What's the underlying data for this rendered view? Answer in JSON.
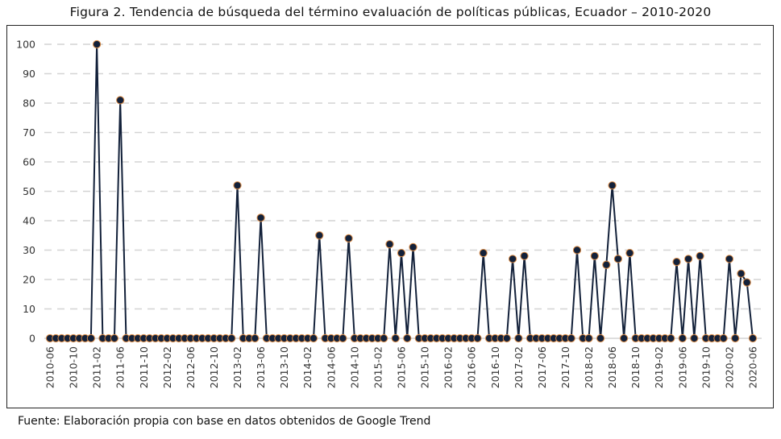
{
  "title": "Figura 2. Tendencia de búsqueda del término evaluación de políticas públicas, Ecuador – 2010-2020",
  "source": "Fuente: Elaboración propia con base en datos obtenidos de Google Trend",
  "colors": {
    "line": "#13213a",
    "marker": "#13213a",
    "marker_edge": "#d98a45",
    "grid": "#d4d4d4"
  },
  "chart_data": {
    "type": "line",
    "title": "Figura 2. Tendencia de búsqueda del término evaluación de políticas públicas, Ecuador – 2010-2020",
    "xlabel": "",
    "ylabel": "",
    "start_month": "2010-06",
    "n_points": 121,
    "ylim": [
      0,
      100
    ],
    "yticks": [
      0,
      10,
      20,
      30,
      40,
      50,
      60,
      70,
      80,
      90,
      100
    ],
    "xtick_labels": [
      "2010-06",
      "2010-10",
      "2011-02",
      "2011-06",
      "2011-10",
      "2012-02",
      "2012-06",
      "2012-10",
      "2013-02",
      "2013-06",
      "2013-10",
      "2014-02",
      "2014-06",
      "2014-10",
      "2015-02",
      "2015-06",
      "2015-10",
      "2016-02",
      "2016-06",
      "2016-10",
      "2017-02",
      "2017-06",
      "2017-10",
      "2018-02",
      "2018-06",
      "2018-10",
      "2019-02",
      "2019-06",
      "2019-10",
      "2020-02",
      "2020-06"
    ],
    "grid": "horizontal dashed",
    "nonzero": {
      "8": 100,
      "12": 81,
      "32": 52,
      "36": 41,
      "46": 35,
      "51": 34,
      "58": 32,
      "60": 29,
      "62": 31,
      "74": 29,
      "79": 27,
      "81": 28,
      "90": 30,
      "93": 28,
      "95": 25,
      "96": 52,
      "97": 27,
      "99": 29,
      "107": 26,
      "109": 27,
      "111": 28,
      "116": 27,
      "118": 22,
      "119": 19
    }
  }
}
